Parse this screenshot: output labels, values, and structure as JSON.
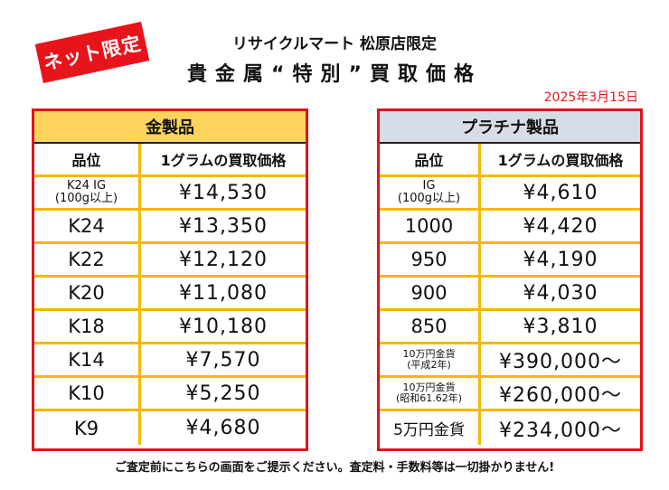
{
  "badge": "ネット限定",
  "store": "リサイクルマート 松原店限定",
  "headline": "貴金属“特別”買取価格",
  "date": "2025年3月15日",
  "gold": {
    "title": "金製品",
    "col_grade": "品位",
    "col_price": "1グラムの買取価格",
    "rows": [
      {
        "grade_l1": "K24 IG",
        "grade_l2": "(100g以上)",
        "price": "¥14,530"
      },
      {
        "grade": "K24",
        "price": "¥13,350"
      },
      {
        "grade": "K22",
        "price": "¥12,120"
      },
      {
        "grade": "K20",
        "price": "¥11,080"
      },
      {
        "grade": "K18",
        "price": "¥10,180"
      },
      {
        "grade": "K14",
        "price": "¥7,570"
      },
      {
        "grade": "K10",
        "price": "¥5,250"
      },
      {
        "grade": "K9",
        "price": "¥4,680"
      }
    ]
  },
  "platinum": {
    "title": "プラチナ製品",
    "col_grade": "品位",
    "col_price": "1グラムの買取価格",
    "rows": [
      {
        "grade_l1": "IG",
        "grade_l2": "(100g以上)",
        "price": "¥4,610"
      },
      {
        "grade": "1000",
        "price": "¥4,420"
      },
      {
        "grade": "950",
        "price": "¥4,190"
      },
      {
        "grade": "900",
        "price": "¥4,030"
      },
      {
        "grade": "850",
        "price": "¥3,810"
      },
      {
        "grade_l1": "10万円金貨",
        "grade_l2": "(平成2年)",
        "price": "¥390,000〜"
      },
      {
        "grade_l1": "10万円金貨",
        "grade_l2": "(昭和61.62年)",
        "price": "¥260,000〜"
      },
      {
        "grade": "5万円金貨",
        "price": "¥234,000〜"
      }
    ]
  },
  "footer": "ご査定前にこちらの画面をご提示ください。査定料・手数料等は一切掛かりません!"
}
